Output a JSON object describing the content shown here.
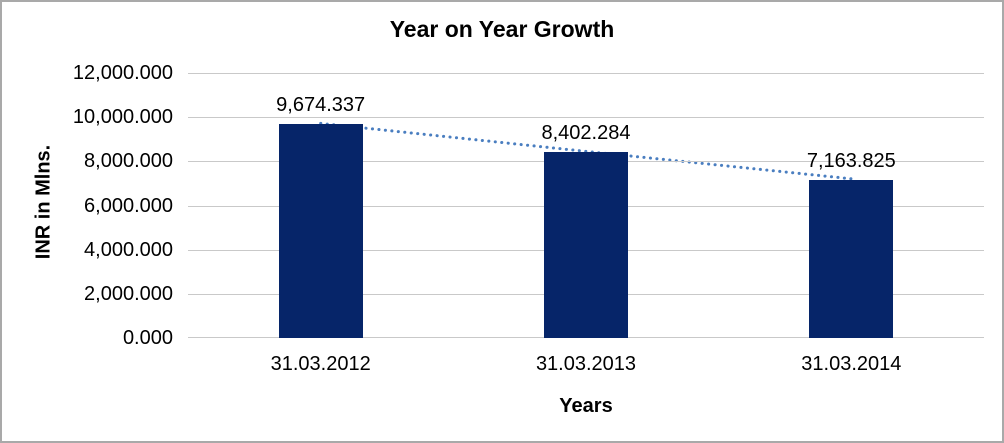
{
  "chart_data": {
    "type": "bar",
    "title": "Year on Year Growth",
    "xlabel": "Years",
    "ylabel": "INR in Mlns.",
    "categories": [
      "31.03.2012",
      "31.03.2013",
      "31.03.2014"
    ],
    "values": [
      9674.337,
      8402.284,
      7163.825
    ],
    "data_labels": [
      "9,674.337",
      "8,402.284",
      "7,163.825"
    ],
    "ylim": [
      0,
      12000
    ],
    "yticks": {
      "values": [
        0,
        2000,
        4000,
        6000,
        8000,
        10000,
        12000
      ],
      "labels": [
        "0.000",
        "2,000.000",
        "4,000.000",
        "6,000.000",
        "8,000.000",
        "10,000.000",
        "12,000.000"
      ]
    },
    "grid": true,
    "legend": false,
    "trendline": {
      "style": "dotted",
      "through": "bar-tops",
      "color": "#4a7ec0"
    },
    "colors": {
      "bar": "#062569",
      "gridline": "#c9c9c9",
      "text": "#000000",
      "border": "#a9a9a9",
      "background": "#ffffff"
    }
  }
}
